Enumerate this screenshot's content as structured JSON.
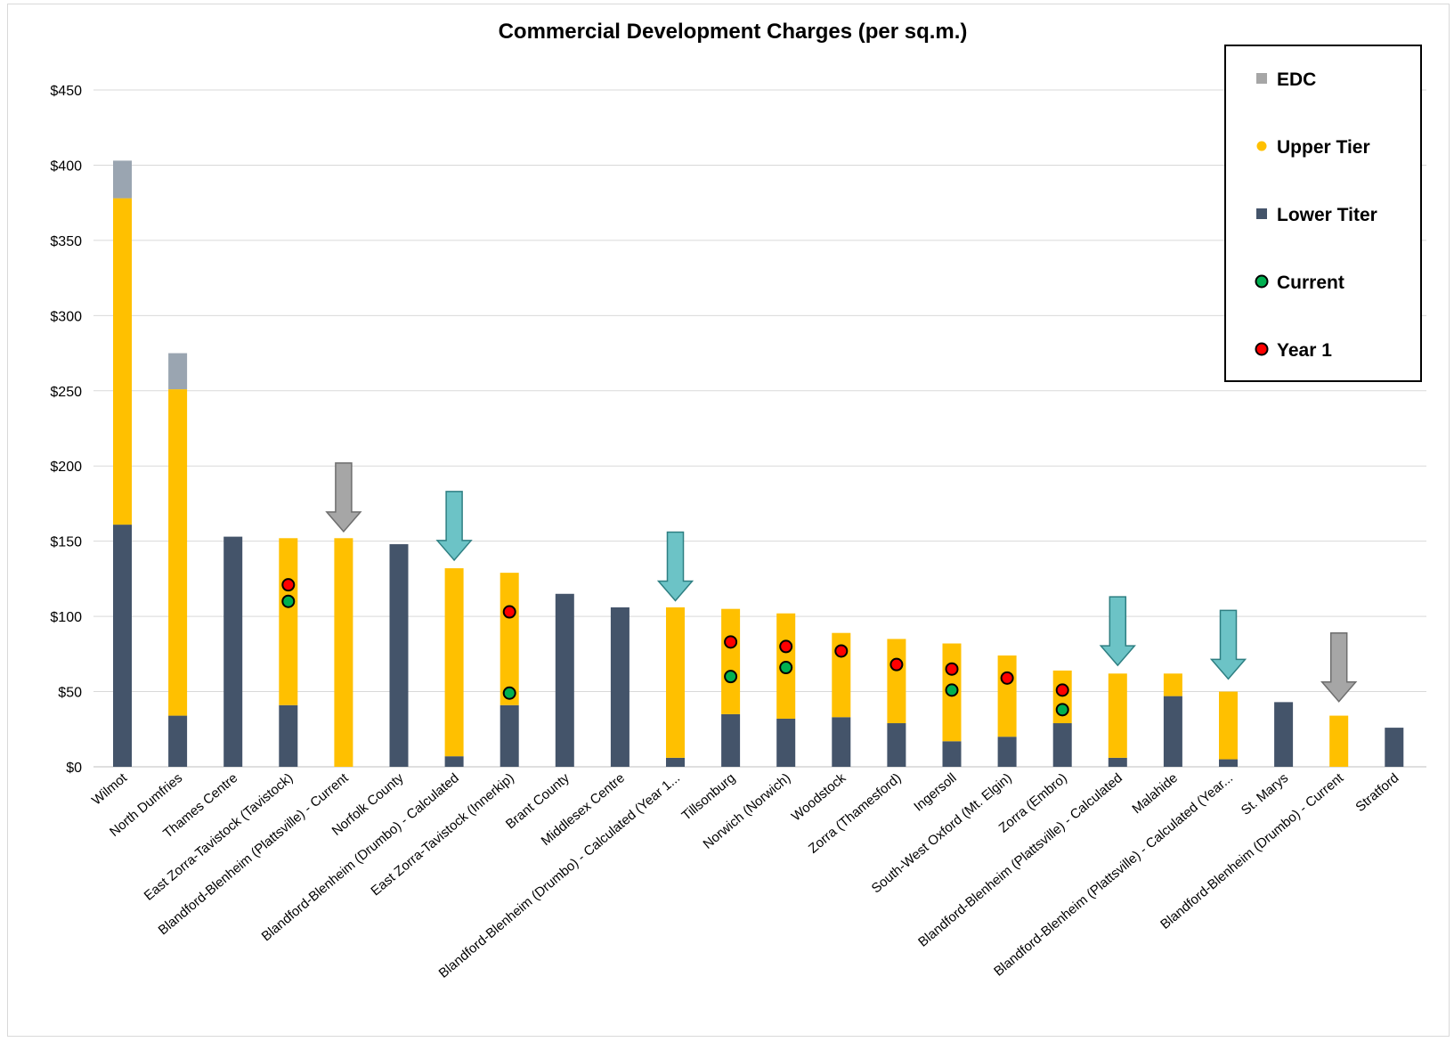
{
  "chart_data": {
    "type": "bar",
    "stacked": true,
    "title": "Commercial Development Charges (per sq.m.)",
    "xlabel": "",
    "ylabel": "",
    "ylim": [
      0,
      450
    ],
    "yticks": [
      0,
      50,
      100,
      150,
      200,
      250,
      300,
      350,
      400,
      450
    ],
    "ytick_labels": [
      "$0",
      "$50",
      "$100",
      "$150",
      "$200",
      "$250",
      "$300",
      "$350",
      "$400",
      "$450"
    ],
    "grid": true,
    "legend_position": "top-right",
    "colors": {
      "EDC": "#9aa5b1",
      "Upper Tier": "#ffc000",
      "Lower Titer": "#44546a",
      "Current": "#00b050",
      "Year 1": "#ff0000",
      "arrow_gray": "#a6a6a6",
      "arrow_teal": "#6cc3c6"
    },
    "categories": [
      "Wilmot",
      "North Dumfries",
      "Thames Centre",
      "East Zorra-Tavistock (Tavistock)",
      "Blandford-Blenheim (Plattsville) - Current",
      "Norfolk County",
      "Blandford-Blenheim (Drumbo) - Calculated",
      "East Zorra-Tavistock (Innerkip)",
      "Brant County",
      "Middlesex Centre",
      "Blandford-Blenheim (Drumbo) - Calculated (Year 1...",
      "Tillsonburg",
      "Norwich (Norwich)",
      "Woodstock",
      "Zorra (Thamesford)",
      "Ingersoll",
      "South-West Oxford (Mt. Elgin)",
      "Zorra (Embro)",
      "Blandford-Blenheim (Plattsville) - Calculated",
      "Malahide",
      "Blandford-Blenheim (Plattsville) - Calculated (Year...",
      "St. Marys",
      "Blandford-Blenheim (Drumbo) - Current",
      "Stratford"
    ],
    "series": [
      {
        "name": "Lower Titer",
        "values": [
          161,
          34,
          153,
          41,
          0,
          148,
          7,
          41,
          115,
          106,
          6,
          35,
          32,
          33,
          29,
          17,
          20,
          29,
          6,
          47,
          5,
          43,
          0,
          26
        ]
      },
      {
        "name": "Upper Tier",
        "values": [
          217,
          217,
          0,
          111,
          152,
          0,
          125,
          88,
          0,
          0,
          100,
          70,
          70,
          56,
          56,
          65,
          54,
          35,
          56,
          15,
          45,
          0,
          34,
          0
        ]
      },
      {
        "name": "EDC",
        "values": [
          25,
          24,
          0,
          0,
          0,
          0,
          0,
          0,
          0,
          0,
          0,
          0,
          0,
          0,
          0,
          0,
          0,
          0,
          0,
          0,
          0,
          0,
          0,
          0
        ]
      }
    ],
    "markers": [
      {
        "name": "Current",
        "values": [
          null,
          null,
          null,
          110,
          null,
          null,
          null,
          49,
          null,
          null,
          null,
          60,
          66,
          null,
          null,
          51,
          null,
          38,
          null,
          null,
          null,
          null,
          null,
          null
        ]
      },
      {
        "name": "Year 1",
        "values": [
          null,
          null,
          null,
          121,
          null,
          null,
          null,
          103,
          null,
          null,
          null,
          83,
          80,
          77,
          68,
          65,
          59,
          51,
          null,
          null,
          null,
          null,
          null,
          null
        ]
      }
    ],
    "arrows": [
      {
        "category_index": 4,
        "color": "gray",
        "top": 202
      },
      {
        "category_index": 6,
        "color": "teal",
        "top": 183
      },
      {
        "category_index": 10,
        "color": "teal",
        "top": 156
      },
      {
        "category_index": 18,
        "color": "teal",
        "top": 113
      },
      {
        "category_index": 20,
        "color": "teal",
        "top": 104
      },
      {
        "category_index": 22,
        "color": "gray",
        "top": 89
      }
    ],
    "legend": [
      {
        "label": "EDC",
        "shape": "square"
      },
      {
        "label": "Upper Tier",
        "shape": "square"
      },
      {
        "label": "Lower Titer",
        "shape": "square"
      },
      {
        "label": "Current",
        "shape": "circle"
      },
      {
        "label": "Year 1",
        "shape": "circle"
      }
    ]
  }
}
